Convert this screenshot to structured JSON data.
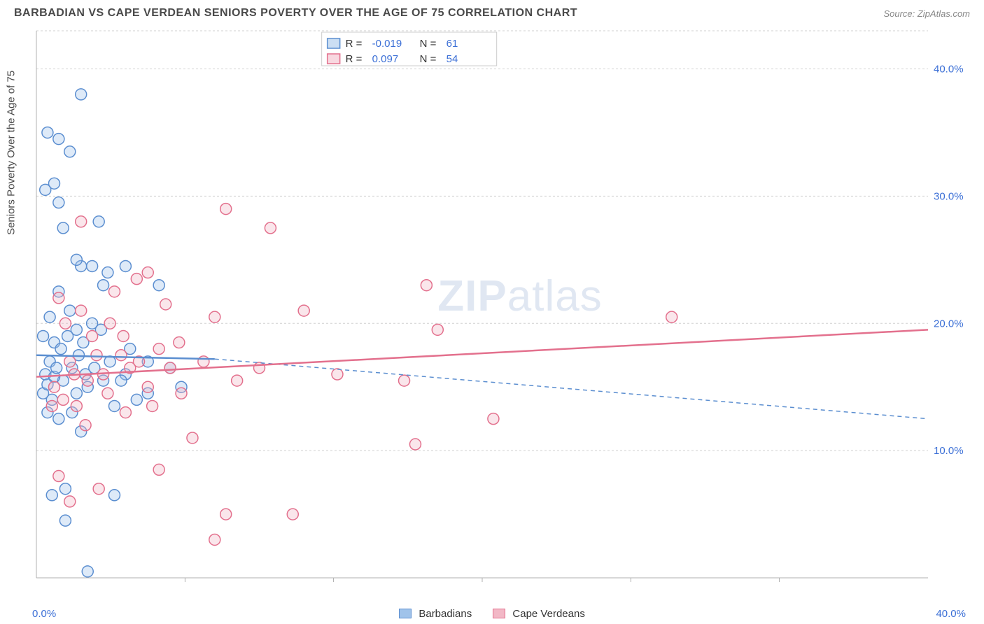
{
  "header": {
    "title": "BARBADIAN VS CAPE VERDEAN SENIORS POVERTY OVER THE AGE OF 75 CORRELATION CHART",
    "source": "Source: ZipAtlas.com"
  },
  "chart": {
    "type": "scatter",
    "ylabel": "Seniors Poverty Over the Age of 75",
    "watermark_bold": "ZIP",
    "watermark_light": "atlas",
    "background_color": "#ffffff",
    "grid_color": "#d0d0d0",
    "axis_color": "#b0b0b0",
    "tick_label_color": "#3b6fd6",
    "xlim": [
      0,
      40
    ],
    "ylim": [
      0,
      43
    ],
    "y_ticks": [
      10,
      20,
      30,
      40
    ],
    "y_tick_labels": [
      "10.0%",
      "20.0%",
      "30.0%",
      "40.0%"
    ],
    "x_ticks": [
      0,
      40
    ],
    "x_tick_labels": [
      "0.0%",
      "40.0%"
    ],
    "x_minor_ticks": [
      6.67,
      13.33,
      20,
      26.67,
      33.33
    ],
    "marker_radius": 8,
    "series": [
      {
        "name": "Barbadians",
        "fill": "#a0c3ea",
        "stroke": "#5b8ed0",
        "R": "-0.019",
        "N": "61",
        "trend": {
          "y_start": 17.5,
          "y_end_at_x8": 17.2,
          "y_end_at_x40": 12.5
        },
        "points": [
          [
            0.3,
            14.5
          ],
          [
            0.4,
            16.0
          ],
          [
            0.5,
            15.2
          ],
          [
            0.6,
            20.5
          ],
          [
            0.7,
            14.0
          ],
          [
            0.8,
            31.0
          ],
          [
            0.8,
            18.5
          ],
          [
            1.0,
            22.5
          ],
          [
            1.0,
            29.5
          ],
          [
            1.0,
            12.5
          ],
          [
            1.2,
            15.5
          ],
          [
            1.2,
            27.5
          ],
          [
            1.3,
            7.0
          ],
          [
            1.5,
            21.0
          ],
          [
            1.5,
            33.5
          ],
          [
            1.6,
            16.5
          ],
          [
            1.8,
            19.5
          ],
          [
            1.8,
            14.5
          ],
          [
            2.0,
            24.5
          ],
          [
            2.0,
            11.5
          ],
          [
            2.0,
            38.0
          ],
          [
            2.2,
            16.0
          ],
          [
            2.3,
            15.0
          ],
          [
            2.5,
            20.0
          ],
          [
            2.5,
            24.5
          ],
          [
            2.8,
            28.0
          ],
          [
            3.0,
            23.0
          ],
          [
            3.0,
            15.5
          ],
          [
            3.2,
            24.0
          ],
          [
            3.5,
            13.5
          ],
          [
            3.5,
            6.5
          ],
          [
            4.0,
            24.5
          ],
          [
            4.0,
            16.0
          ],
          [
            4.2,
            18.0
          ],
          [
            4.5,
            14.0
          ],
          [
            5.0,
            14.5
          ],
          [
            5.0,
            17.0
          ],
          [
            5.5,
            23.0
          ],
          [
            6.0,
            16.5
          ],
          [
            6.5,
            15.0
          ],
          [
            0.5,
            35.0
          ],
          [
            1.0,
            34.5
          ],
          [
            0.4,
            30.5
          ],
          [
            0.6,
            17.0
          ],
          [
            0.8,
            15.8
          ],
          [
            1.1,
            18.0
          ],
          [
            1.4,
            19.0
          ],
          [
            1.6,
            13.0
          ],
          [
            1.9,
            17.5
          ],
          [
            2.1,
            18.5
          ],
          [
            2.6,
            16.5
          ],
          [
            2.9,
            19.5
          ],
          [
            3.3,
            17.0
          ],
          [
            3.8,
            15.5
          ],
          [
            1.3,
            4.5
          ],
          [
            2.3,
            0.5
          ],
          [
            0.7,
            6.5
          ],
          [
            1.8,
            25.0
          ],
          [
            0.5,
            13.0
          ],
          [
            0.3,
            19.0
          ],
          [
            0.9,
            16.5
          ]
        ]
      },
      {
        "name": "Cape Verdeans",
        "fill": "#f2b8c6",
        "stroke": "#e3708d",
        "R": "0.097",
        "N": "54",
        "trend": {
          "y_start": 15.8,
          "y_end_at_x40": 19.5
        },
        "points": [
          [
            0.8,
            15.0
          ],
          [
            1.0,
            22.0
          ],
          [
            1.2,
            14.0
          ],
          [
            1.5,
            17.0
          ],
          [
            1.8,
            13.5
          ],
          [
            2.0,
            21.0
          ],
          [
            2.0,
            28.0
          ],
          [
            2.3,
            15.5
          ],
          [
            2.5,
            19.0
          ],
          [
            2.8,
            7.0
          ],
          [
            3.0,
            16.0
          ],
          [
            3.2,
            14.5
          ],
          [
            3.5,
            22.5
          ],
          [
            3.8,
            17.5
          ],
          [
            4.0,
            13.0
          ],
          [
            4.2,
            16.5
          ],
          [
            4.5,
            23.5
          ],
          [
            5.0,
            15.0
          ],
          [
            5.0,
            24.0
          ],
          [
            5.5,
            18.0
          ],
          [
            5.5,
            8.5
          ],
          [
            6.0,
            16.5
          ],
          [
            6.5,
            14.5
          ],
          [
            7.0,
            11.0
          ],
          [
            7.5,
            17.0
          ],
          [
            8.0,
            20.5
          ],
          [
            8.5,
            29.0
          ],
          [
            8.5,
            5.0
          ],
          [
            9.0,
            15.5
          ],
          [
            10.0,
            16.5
          ],
          [
            10.5,
            27.5
          ],
          [
            11.5,
            5.0
          ],
          [
            12.0,
            21.0
          ],
          [
            8.0,
            3.0
          ],
          [
            13.5,
            16.0
          ],
          [
            16.5,
            15.5
          ],
          [
            17.0,
            10.5
          ],
          [
            17.5,
            23.0
          ],
          [
            18.0,
            19.5
          ],
          [
            20.5,
            12.5
          ],
          [
            28.5,
            20.5
          ],
          [
            1.3,
            20.0
          ],
          [
            1.7,
            16.0
          ],
          [
            2.2,
            12.0
          ],
          [
            2.7,
            17.5
          ],
          [
            3.3,
            20.0
          ],
          [
            3.9,
            19.0
          ],
          [
            4.6,
            17.0
          ],
          [
            5.2,
            13.5
          ],
          [
            5.8,
            21.5
          ],
          [
            6.4,
            18.5
          ],
          [
            1.0,
            8.0
          ],
          [
            1.5,
            6.0
          ],
          [
            0.7,
            13.5
          ]
        ]
      }
    ],
    "legend_top": {
      "r_label": "R =",
      "n_label": "N ="
    },
    "legend_bottom": {
      "items": [
        "Barbadians",
        "Cape Verdeans"
      ]
    }
  }
}
